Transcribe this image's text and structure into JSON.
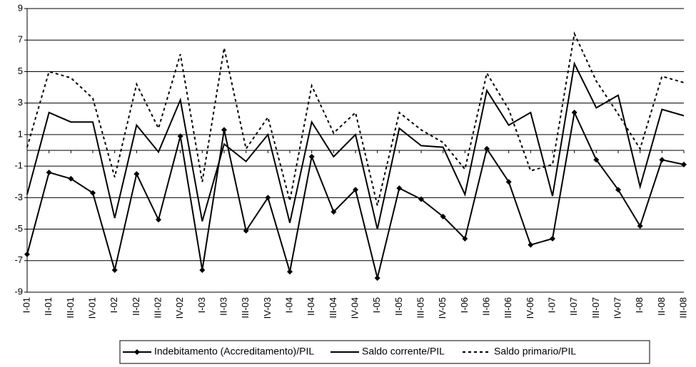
{
  "chart_data": {
    "type": "line",
    "categories": [
      "I-01",
      "II-01",
      "III-01",
      "IV-01",
      "I-02",
      "II-02",
      "III-02",
      "IV-02",
      "I-03",
      "II-03",
      "III-03",
      "IV-03",
      "I-04",
      "II-04",
      "III-04",
      "IV-04",
      "I-05",
      "II-05",
      "III-05",
      "IV-05",
      "I-06",
      "II-06",
      "III-06",
      "IV-06",
      "I-07",
      "II-07",
      "III-07",
      "IV-07",
      "I-08",
      "II-08",
      "III-08"
    ],
    "series": [
      {
        "name": "Indebitamento (Accreditamento)/PIL",
        "color": "#000000",
        "marker": "diamond",
        "dash": "solid",
        "values": [
          -6.6,
          -1.4,
          -1.8,
          -2.7,
          -7.6,
          -1.5,
          -4.4,
          0.9,
          -7.6,
          1.3,
          -5.1,
          -3.0,
          -7.7,
          -0.4,
          -3.9,
          -2.5,
          -8.1,
          -2.4,
          -3.1,
          -4.2,
          -5.6,
          0.1,
          -2.0,
          -6.0,
          -5.6,
          2.4,
          -0.6,
          -2.5,
          -4.8,
          -0.6,
          -0.9
        ]
      },
      {
        "name": "Saldo corrente/PIL",
        "color": "#000000",
        "marker": "none",
        "dash": "solid",
        "values": [
          -2.8,
          2.4,
          1.8,
          1.8,
          -4.3,
          1.6,
          -0.1,
          3.2,
          -4.5,
          0.4,
          -0.7,
          1.0,
          -4.6,
          1.8,
          -0.4,
          1.0,
          -5.0,
          1.4,
          0.3,
          0.2,
          -2.8,
          3.8,
          1.6,
          2.4,
          -2.9,
          5.5,
          2.7,
          3.5,
          -2.3,
          2.6,
          2.2
        ]
      },
      {
        "name": "Saldo primario/PIL",
        "color": "#000000",
        "marker": "none",
        "dash": "dashed",
        "values": [
          0.2,
          5.0,
          4.6,
          3.3,
          -1.7,
          4.2,
          1.4,
          6.1,
          -2.0,
          6.5,
          0.1,
          2.1,
          -3.2,
          4.1,
          1.1,
          2.4,
          -3.5,
          2.4,
          1.3,
          0.5,
          -1.2,
          4.9,
          2.6,
          -1.3,
          -0.9,
          7.4,
          4.4,
          2.3,
          0.1,
          4.7,
          4.3
        ]
      }
    ],
    "ylim": [
      -9,
      9
    ],
    "yticks": [
      -9,
      -7,
      -5,
      -3,
      -1,
      1,
      3,
      5,
      7,
      9
    ],
    "grid": true,
    "legend": "bottom"
  }
}
